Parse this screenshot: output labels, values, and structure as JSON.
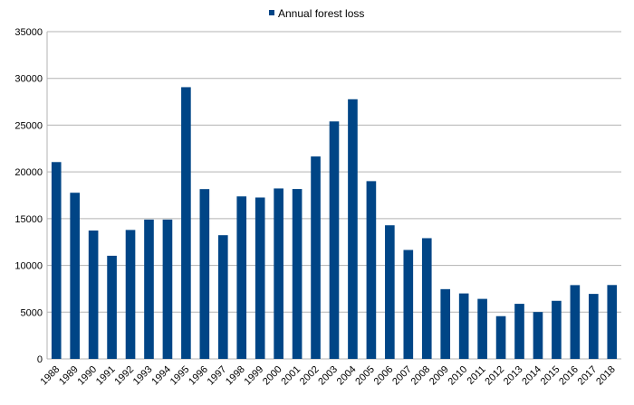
{
  "chart_data": {
    "type": "bar",
    "legend": {
      "label": "Annual forest loss",
      "position": "top"
    },
    "color": "#004586",
    "grid": true,
    "ylim": [
      0,
      35000
    ],
    "yticks": [
      0,
      5000,
      10000,
      15000,
      20000,
      25000,
      30000,
      35000
    ],
    "categories": [
      "1988",
      "1989",
      "1990",
      "1991",
      "1992",
      "1993",
      "1994",
      "1995",
      "1996",
      "1997",
      "1998",
      "1999",
      "2000",
      "2001",
      "2002",
      "2003",
      "2004",
      "2005",
      "2006",
      "2007",
      "2008",
      "2009",
      "2010",
      "2011",
      "2012",
      "2013",
      "2014",
      "2015",
      "2016",
      "2017",
      "2018"
    ],
    "series": [
      {
        "name": "Annual forest loss",
        "values": [
          21050,
          17770,
          13730,
          11030,
          13790,
          14900,
          14900,
          29060,
          18160,
          13230,
          17380,
          17260,
          18230,
          18170,
          21650,
          25400,
          27770,
          19010,
          14290,
          11650,
          12910,
          7460,
          7000,
          6420,
          4570,
          5890,
          5010,
          6210,
          7890,
          6950,
          7900
        ]
      }
    ]
  }
}
